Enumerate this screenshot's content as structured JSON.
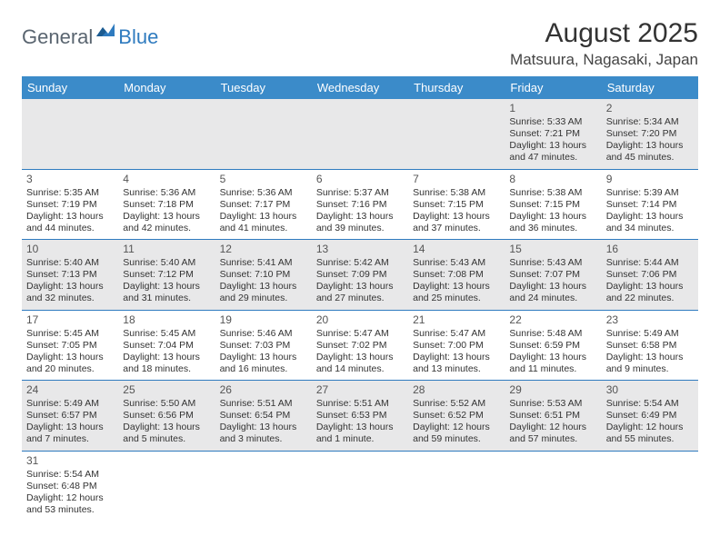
{
  "logo": {
    "part1": "General",
    "part2": "Blue"
  },
  "title": "August 2025",
  "location": "Matsuura, Nagasaki, Japan",
  "colors": {
    "header_bg": "#3b8bc9",
    "header_text": "#ffffff",
    "row_alt_bg": "#e8e8e9",
    "row_bg": "#ffffff",
    "border": "#2f7bbf",
    "logo_gray": "#5a6570",
    "logo_blue": "#2f7bbf"
  },
  "weekdays": [
    "Sunday",
    "Monday",
    "Tuesday",
    "Wednesday",
    "Thursday",
    "Friday",
    "Saturday"
  ],
  "weeks": [
    {
      "shade": "odd",
      "days": [
        null,
        null,
        null,
        null,
        null,
        {
          "n": "1",
          "sunrise": "Sunrise: 5:33 AM",
          "sunset": "Sunset: 7:21 PM",
          "daylight": "Daylight: 13 hours and 47 minutes."
        },
        {
          "n": "2",
          "sunrise": "Sunrise: 5:34 AM",
          "sunset": "Sunset: 7:20 PM",
          "daylight": "Daylight: 13 hours and 45 minutes."
        }
      ]
    },
    {
      "shade": "even",
      "days": [
        {
          "n": "3",
          "sunrise": "Sunrise: 5:35 AM",
          "sunset": "Sunset: 7:19 PM",
          "daylight": "Daylight: 13 hours and 44 minutes."
        },
        {
          "n": "4",
          "sunrise": "Sunrise: 5:36 AM",
          "sunset": "Sunset: 7:18 PM",
          "daylight": "Daylight: 13 hours and 42 minutes."
        },
        {
          "n": "5",
          "sunrise": "Sunrise: 5:36 AM",
          "sunset": "Sunset: 7:17 PM",
          "daylight": "Daylight: 13 hours and 41 minutes."
        },
        {
          "n": "6",
          "sunrise": "Sunrise: 5:37 AM",
          "sunset": "Sunset: 7:16 PM",
          "daylight": "Daylight: 13 hours and 39 minutes."
        },
        {
          "n": "7",
          "sunrise": "Sunrise: 5:38 AM",
          "sunset": "Sunset: 7:15 PM",
          "daylight": "Daylight: 13 hours and 37 minutes."
        },
        {
          "n": "8",
          "sunrise": "Sunrise: 5:38 AM",
          "sunset": "Sunset: 7:15 PM",
          "daylight": "Daylight: 13 hours and 36 minutes."
        },
        {
          "n": "9",
          "sunrise": "Sunrise: 5:39 AM",
          "sunset": "Sunset: 7:14 PM",
          "daylight": "Daylight: 13 hours and 34 minutes."
        }
      ]
    },
    {
      "shade": "odd",
      "days": [
        {
          "n": "10",
          "sunrise": "Sunrise: 5:40 AM",
          "sunset": "Sunset: 7:13 PM",
          "daylight": "Daylight: 13 hours and 32 minutes."
        },
        {
          "n": "11",
          "sunrise": "Sunrise: 5:40 AM",
          "sunset": "Sunset: 7:12 PM",
          "daylight": "Daylight: 13 hours and 31 minutes."
        },
        {
          "n": "12",
          "sunrise": "Sunrise: 5:41 AM",
          "sunset": "Sunset: 7:10 PM",
          "daylight": "Daylight: 13 hours and 29 minutes."
        },
        {
          "n": "13",
          "sunrise": "Sunrise: 5:42 AM",
          "sunset": "Sunset: 7:09 PM",
          "daylight": "Daylight: 13 hours and 27 minutes."
        },
        {
          "n": "14",
          "sunrise": "Sunrise: 5:43 AM",
          "sunset": "Sunset: 7:08 PM",
          "daylight": "Daylight: 13 hours and 25 minutes."
        },
        {
          "n": "15",
          "sunrise": "Sunrise: 5:43 AM",
          "sunset": "Sunset: 7:07 PM",
          "daylight": "Daylight: 13 hours and 24 minutes."
        },
        {
          "n": "16",
          "sunrise": "Sunrise: 5:44 AM",
          "sunset": "Sunset: 7:06 PM",
          "daylight": "Daylight: 13 hours and 22 minutes."
        }
      ]
    },
    {
      "shade": "even",
      "days": [
        {
          "n": "17",
          "sunrise": "Sunrise: 5:45 AM",
          "sunset": "Sunset: 7:05 PM",
          "daylight": "Daylight: 13 hours and 20 minutes."
        },
        {
          "n": "18",
          "sunrise": "Sunrise: 5:45 AM",
          "sunset": "Sunset: 7:04 PM",
          "daylight": "Daylight: 13 hours and 18 minutes."
        },
        {
          "n": "19",
          "sunrise": "Sunrise: 5:46 AM",
          "sunset": "Sunset: 7:03 PM",
          "daylight": "Daylight: 13 hours and 16 minutes."
        },
        {
          "n": "20",
          "sunrise": "Sunrise: 5:47 AM",
          "sunset": "Sunset: 7:02 PM",
          "daylight": "Daylight: 13 hours and 14 minutes."
        },
        {
          "n": "21",
          "sunrise": "Sunrise: 5:47 AM",
          "sunset": "Sunset: 7:00 PM",
          "daylight": "Daylight: 13 hours and 13 minutes."
        },
        {
          "n": "22",
          "sunrise": "Sunrise: 5:48 AM",
          "sunset": "Sunset: 6:59 PM",
          "daylight": "Daylight: 13 hours and 11 minutes."
        },
        {
          "n": "23",
          "sunrise": "Sunrise: 5:49 AM",
          "sunset": "Sunset: 6:58 PM",
          "daylight": "Daylight: 13 hours and 9 minutes."
        }
      ]
    },
    {
      "shade": "odd",
      "days": [
        {
          "n": "24",
          "sunrise": "Sunrise: 5:49 AM",
          "sunset": "Sunset: 6:57 PM",
          "daylight": "Daylight: 13 hours and 7 minutes."
        },
        {
          "n": "25",
          "sunrise": "Sunrise: 5:50 AM",
          "sunset": "Sunset: 6:56 PM",
          "daylight": "Daylight: 13 hours and 5 minutes."
        },
        {
          "n": "26",
          "sunrise": "Sunrise: 5:51 AM",
          "sunset": "Sunset: 6:54 PM",
          "daylight": "Daylight: 13 hours and 3 minutes."
        },
        {
          "n": "27",
          "sunrise": "Sunrise: 5:51 AM",
          "sunset": "Sunset: 6:53 PM",
          "daylight": "Daylight: 13 hours and 1 minute."
        },
        {
          "n": "28",
          "sunrise": "Sunrise: 5:52 AM",
          "sunset": "Sunset: 6:52 PM",
          "daylight": "Daylight: 12 hours and 59 minutes."
        },
        {
          "n": "29",
          "sunrise": "Sunrise: 5:53 AM",
          "sunset": "Sunset: 6:51 PM",
          "daylight": "Daylight: 12 hours and 57 minutes."
        },
        {
          "n": "30",
          "sunrise": "Sunrise: 5:54 AM",
          "sunset": "Sunset: 6:49 PM",
          "daylight": "Daylight: 12 hours and 55 minutes."
        }
      ]
    },
    {
      "shade": "even",
      "last": true,
      "days": [
        {
          "n": "31",
          "sunrise": "Sunrise: 5:54 AM",
          "sunset": "Sunset: 6:48 PM",
          "daylight": "Daylight: 12 hours and 53 minutes."
        },
        null,
        null,
        null,
        null,
        null,
        null
      ]
    }
  ]
}
